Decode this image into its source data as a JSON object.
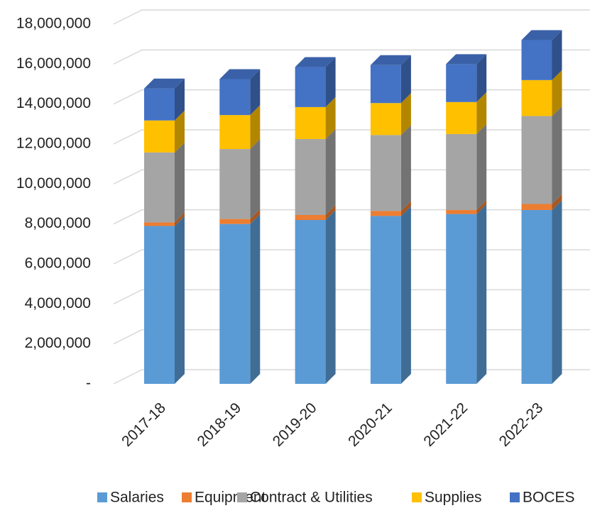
{
  "chart_data": {
    "type": "bar",
    "stacked": true,
    "categories": [
      "2017-18",
      "2018-19",
      "2019-20",
      "2020-21",
      "2021-22",
      "2022-23"
    ],
    "series": [
      {
        "name": "Salaries",
        "color": "#5b9bd5",
        "values": [
          7900000,
          8000000,
          8200000,
          8400000,
          8500000,
          8700000
        ]
      },
      {
        "name": "Equipment",
        "color": "#ed7d31",
        "values": [
          180000,
          250000,
          250000,
          250000,
          200000,
          300000
        ]
      },
      {
        "name": "Contract & Utilities",
        "color": "#a5a5a5",
        "values": [
          3500000,
          3500000,
          3800000,
          3800000,
          3800000,
          4400000
        ]
      },
      {
        "name": "Supplies",
        "color": "#ffc000",
        "values": [
          1600000,
          1700000,
          1600000,
          1600000,
          1600000,
          1800000
        ]
      },
      {
        "name": "BOCES",
        "color": "#4472c4",
        "values": [
          1600000,
          1800000,
          2000000,
          1900000,
          1900000,
          2000000
        ]
      }
    ],
    "ylim": [
      0,
      18000000
    ],
    "yticks": [
      {
        "value": 0,
        "label": "-"
      },
      {
        "value": 2000000,
        "label": "2,000,000"
      },
      {
        "value": 4000000,
        "label": "4,000,000"
      },
      {
        "value": 6000000,
        "label": "6,000,000"
      },
      {
        "value": 8000000,
        "label": "8,000,000"
      },
      {
        "value": 10000000,
        "label": "10,000,000"
      },
      {
        "value": 12000000,
        "label": "12,000,000"
      },
      {
        "value": 14000000,
        "label": "14,000,000"
      },
      {
        "value": 16000000,
        "label": "16,000,000"
      },
      {
        "value": 18000000,
        "label": "18,000,000"
      }
    ],
    "grid": true,
    "legend": "bottom"
  }
}
